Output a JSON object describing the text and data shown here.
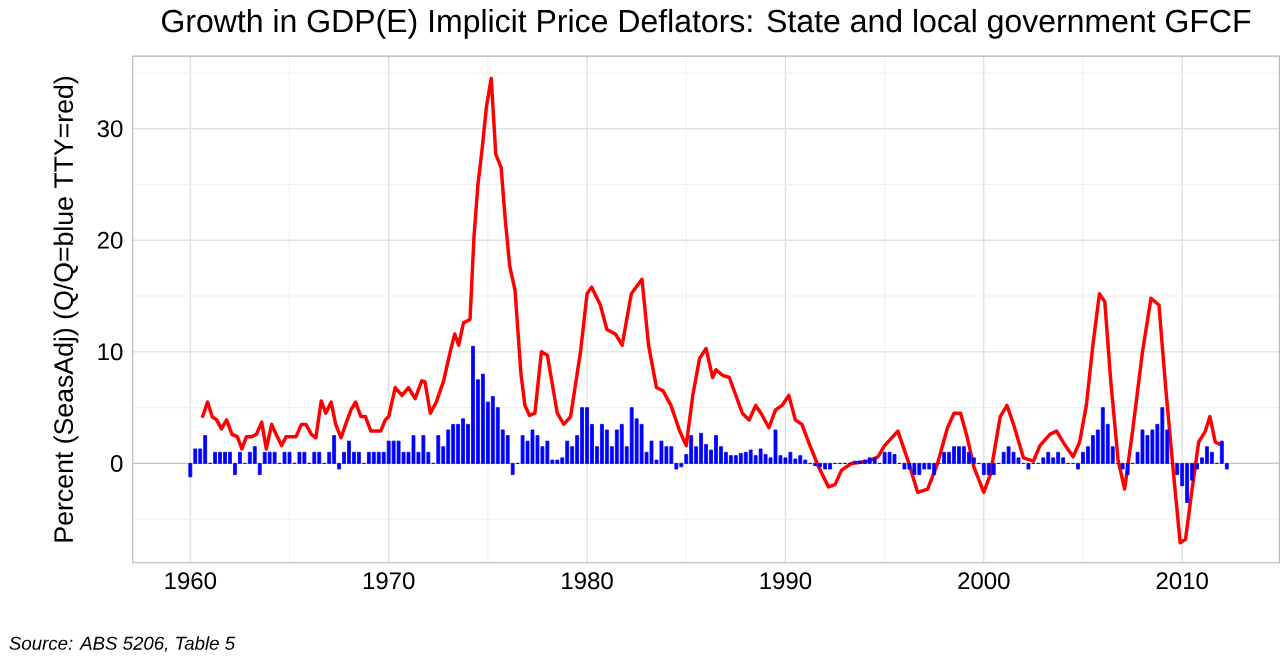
{
  "chart_data": {
    "type": "line",
    "title": "Growth in GDP(E) Implicit Price Deflators: State and local government GFCF",
    "ylabel": "Percent (SeasAdj) (Q/Q=blue TTY=red)",
    "annotations": [
      "Source: ABS 5206, Table 5"
    ],
    "xlim": [
      1957.1,
      2014.9
    ],
    "ylim": [
      -8.9,
      36.5
    ],
    "xticks": [
      1960,
      1970,
      1980,
      1990,
      2000,
      2010
    ],
    "yticks": [
      0,
      10,
      20,
      30
    ],
    "grid": true,
    "marker": "none",
    "line_style": "solid",
    "series": [
      {
        "type": "bar",
        "color": "#0000ff",
        "x": [
          1960,
          1960.25,
          1960.5,
          1960.75,
          1961,
          1961.25,
          1961.5,
          1961.75,
          1962,
          1962.25,
          1962.5,
          1962.75,
          1963,
          1963.25,
          1963.5,
          1963.75,
          1964,
          1964.25,
          1964.5,
          1964.75,
          1965,
          1965.25,
          1965.5,
          1965.75,
          1966,
          1966.25,
          1966.5,
          1966.75,
          1967,
          1967.25,
          1967.5,
          1967.75,
          1968,
          1968.25,
          1968.5,
          1968.75,
          1969,
          1969.25,
          1969.5,
          1969.75,
          1970,
          1970.25,
          1970.5,
          1970.75,
          1971,
          1971.25,
          1971.5,
          1971.75,
          1972,
          1972.25,
          1972.5,
          1972.75,
          1973,
          1973.25,
          1973.5,
          1973.75,
          1974,
          1974.25,
          1974.5,
          1974.75,
          1975,
          1975.25,
          1975.5,
          1975.75,
          1976,
          1976.25,
          1976.5,
          1976.75,
          1977,
          1977.25,
          1977.5,
          1977.75,
          1978,
          1978.25,
          1978.5,
          1978.75,
          1979,
          1979.25,
          1979.5,
          1979.75,
          1980,
          1980.25,
          1980.5,
          1980.75,
          1981,
          1981.25,
          1981.5,
          1981.75,
          1982,
          1982.25,
          1982.5,
          1982.75,
          1983,
          1983.25,
          1983.5,
          1983.75,
          1984,
          1984.25,
          1984.5,
          1984.75,
          1985,
          1985.25,
          1985.5,
          1985.75,
          1986,
          1986.25,
          1986.5,
          1986.75,
          1987,
          1987.25,
          1987.5,
          1987.75,
          1988,
          1988.25,
          1988.5,
          1988.75,
          1989,
          1989.25,
          1989.5,
          1989.75,
          1990,
          1990.25,
          1990.5,
          1990.75,
          1991,
          1991.25,
          1991.5,
          1991.75,
          1992,
          1992.25,
          1992.5,
          1992.75,
          1993,
          1993.25,
          1993.5,
          1993.75,
          1994,
          1994.25,
          1994.5,
          1994.75,
          1995,
          1995.25,
          1995.5,
          1995.75,
          1996,
          1996.25,
          1996.5,
          1996.75,
          1997,
          1997.25,
          1997.5,
          1997.75,
          1998,
          1998.25,
          1998.5,
          1998.75,
          1999,
          1999.25,
          1999.5,
          1999.75,
          2000,
          2000.25,
          2000.5,
          2000.75,
          2001,
          2001.25,
          2001.5,
          2001.75,
          2002,
          2002.25,
          2002.5,
          2002.75,
          2003,
          2003.25,
          2003.5,
          2003.75,
          2004,
          2004.25,
          2004.5,
          2004.75,
          2005,
          2005.25,
          2005.5,
          2005.75,
          2006,
          2006.25,
          2006.5,
          2006.75,
          2007,
          2007.25,
          2007.5,
          2007.75,
          2008,
          2008.25,
          2008.5,
          2008.75,
          2009,
          2009.25,
          2009.5,
          2009.75,
          2010,
          2010.25,
          2010.5,
          2010.75,
          2011,
          2011.25,
          2011.5,
          2011.75,
          2012,
          2012.25
        ],
        "values": [
          -1.2,
          1.3,
          1.3,
          2.5,
          0,
          1.0,
          1.0,
          1.0,
          1.0,
          -1.0,
          1.0,
          0,
          1.0,
          1.5,
          -1.0,
          1.0,
          1.0,
          1.0,
          0,
          1.0,
          1.0,
          0,
          1.0,
          1.0,
          0,
          1.0,
          1.0,
          0,
          1.0,
          2.5,
          -0.5,
          1.0,
          2.0,
          1.0,
          1.0,
          0,
          1.0,
          1.0,
          1.0,
          1.0,
          2.0,
          2.0,
          2.0,
          1.0,
          1.0,
          2.5,
          1.0,
          2.5,
          1.0,
          0,
          2.5,
          1.5,
          3.0,
          3.5,
          3.5,
          4.0,
          3.5,
          10.5,
          7.5,
          8.0,
          5.5,
          6.0,
          5.0,
          3.0,
          2.5,
          -1.0,
          0,
          2.5,
          2.0,
          3.0,
          2.5,
          1.5,
          2.0,
          0.3,
          0.3,
          0.5,
          2.0,
          1.5,
          2.5,
          5.0,
          5.0,
          3.5,
          1.5,
          3.5,
          3.0,
          1.5,
          3.0,
          3.5,
          1.5,
          5.0,
          4.0,
          3.5,
          1.0,
          2.0,
          0.3,
          2.0,
          1.5,
          1.5,
          -0.5,
          -0.3,
          0.8,
          2.5,
          1.5,
          2.7,
          1.7,
          1.2,
          2.5,
          1.5,
          1.0,
          0.7,
          0.7,
          0.9,
          1.0,
          1.2,
          0.7,
          1.3,
          0.8,
          0.5,
          3.0,
          0.7,
          0.5,
          1.0,
          0.4,
          0.7,
          0.3,
          0,
          -0.2,
          -0.3,
          -0.5,
          -0.5,
          0,
          0,
          0,
          0,
          0.2,
          0.2,
          0.3,
          0.5,
          0.5,
          0,
          1.0,
          1.0,
          0.8,
          0,
          -0.5,
          -0.5,
          -1.0,
          -1.0,
          -0.5,
          -0.5,
          -1.0,
          0,
          1.0,
          1.0,
          1.5,
          1.5,
          1.5,
          1.0,
          0.5,
          0,
          -1.0,
          -1.0,
          -1.0,
          0,
          1.0,
          1.5,
          1.0,
          0.5,
          0,
          -0.5,
          0,
          0,
          0.5,
          1.0,
          0.5,
          1.0,
          0.5,
          0,
          0,
          -0.5,
          1.0,
          1.5,
          2.5,
          3.0,
          5.0,
          3.5,
          1.5,
          0,
          -0.5,
          -1.0,
          0,
          1.0,
          3.0,
          2.5,
          3.0,
          3.5,
          5.0,
          3.0,
          0,
          -1.0,
          -2.0,
          -3.5,
          -1.5,
          -0.5,
          0.5,
          1.5,
          1.0,
          0,
          2.0,
          -0.5
        ]
      },
      {
        "color": "#ff0000",
        "x": [
          1960.6,
          1960.87,
          1961.1,
          1961.33,
          1961.57,
          1961.83,
          1962.1,
          1962.37,
          1962.6,
          1962.83,
          1963.1,
          1963.33,
          1963.6,
          1963.83,
          1964.1,
          1964.33,
          1964.6,
          1964.83,
          1965.1,
          1965.33,
          1965.6,
          1965.83,
          1966.1,
          1966.33,
          1966.6,
          1966.83,
          1967.1,
          1967.33,
          1967.6,
          1967.83,
          1968.1,
          1968.33,
          1968.6,
          1968.83,
          1969.1,
          1969.33,
          1969.6,
          1969.83,
          1970.0,
          1970.33,
          1970.67,
          1971.0,
          1971.33,
          1971.67,
          1971.83,
          1972.1,
          1972.4,
          1972.77,
          1973.1,
          1973.33,
          1973.53,
          1973.77,
          1974.1,
          1974.3,
          1974.5,
          1974.7,
          1974.93,
          1975.17,
          1975.4,
          1975.67,
          1975.87,
          1976.1,
          1976.37,
          1976.67,
          1976.87,
          1977.1,
          1977.37,
          1977.7,
          1978.0,
          1978.5,
          1978.83,
          1979.17,
          1979.67,
          1980.0,
          1980.23,
          1980.67,
          1981.0,
          1981.43,
          1981.77,
          1982.23,
          1982.77,
          1983.1,
          1983.5,
          1983.83,
          1984.23,
          1984.67,
          1985.0,
          1985.33,
          1985.67,
          1986.0,
          1986.33,
          1986.5,
          1986.83,
          1987.17,
          1987.5,
          1987.83,
          1988.17,
          1988.5,
          1988.77,
          1989.17,
          1989.5,
          1989.83,
          1990.17,
          1990.5,
          1990.83,
          1991.17,
          1991.67,
          1992.17,
          1992.5,
          1992.83,
          1993.33,
          1994.17,
          1994.67,
          1995.0,
          1995.67,
          1996.17,
          1996.67,
          1997.17,
          1997.67,
          1998.17,
          1998.5,
          1998.83,
          1999.17,
          1999.5,
          2000.0,
          2000.33,
          2000.83,
          2001.17,
          2001.5,
          2002.0,
          2002.5,
          2002.83,
          2003.33,
          2003.67,
          2004.0,
          2004.5,
          2004.83,
          2005.17,
          2005.5,
          2005.83,
          2006.1,
          2006.4,
          2006.77,
          2007.1,
          2007.5,
          2008.0,
          2008.43,
          2008.83,
          2009.17,
          2009.57,
          2009.9,
          2010.17,
          2010.5,
          2010.83,
          2011.17,
          2011.4,
          2011.67,
          2012.07
        ],
        "values": [
          4.1,
          5.5,
          4.2,
          3.9,
          3.1,
          3.9,
          2.6,
          2.4,
          1.3,
          2.4,
          2.4,
          2.6,
          3.7,
          1.3,
          3.5,
          2.6,
          1.6,
          2.4,
          2.4,
          2.4,
          3.5,
          3.5,
          2.6,
          2.3,
          5.6,
          4.5,
          5.5,
          3.5,
          2.3,
          3.5,
          4.8,
          5.5,
          4.2,
          4.2,
          2.9,
          2.9,
          2.9,
          3.9,
          4.2,
          6.8,
          6.1,
          6.8,
          5.8,
          7.4,
          7.3,
          4.5,
          5.5,
          7.4,
          10.0,
          11.6,
          10.6,
          12.6,
          12.9,
          20.3,
          25.0,
          28.0,
          32.0,
          34.5,
          27.7,
          26.5,
          22.0,
          17.7,
          15.5,
          8.0,
          5.2,
          4.3,
          4.5,
          10.0,
          9.7,
          4.5,
          3.5,
          4.2,
          10.0,
          15.2,
          15.8,
          14.2,
          12.0,
          11.6,
          10.6,
          15.2,
          16.5,
          10.6,
          6.8,
          6.5,
          5.2,
          2.9,
          1.6,
          6.1,
          9.4,
          10.3,
          7.7,
          8.4,
          7.9,
          7.7,
          6.1,
          4.5,
          3.9,
          5.2,
          4.5,
          3.2,
          4.8,
          5.2,
          6.1,
          3.9,
          3.5,
          1.9,
          -0.3,
          -2.1,
          -1.9,
          -0.6,
          0,
          0.2,
          0.6,
          1.6,
          2.9,
          0.3,
          -2.6,
          -2.3,
          0,
          3.2,
          4.5,
          4.5,
          2.3,
          -0.3,
          -2.6,
          -1.0,
          4.2,
          5.2,
          3.5,
          0.5,
          0.2,
          1.6,
          2.6,
          2.9,
          1.9,
          0.6,
          1.9,
          5.2,
          10.6,
          15.2,
          14.5,
          7.4,
          0.3,
          -2.3,
          2.9,
          10.0,
          14.8,
          14.2,
          6.8,
          -1.0,
          -7.1,
          -6.8,
          -2.3,
          1.9,
          2.9,
          4.2,
          1.9,
          1.6
        ]
      }
    ]
  }
}
